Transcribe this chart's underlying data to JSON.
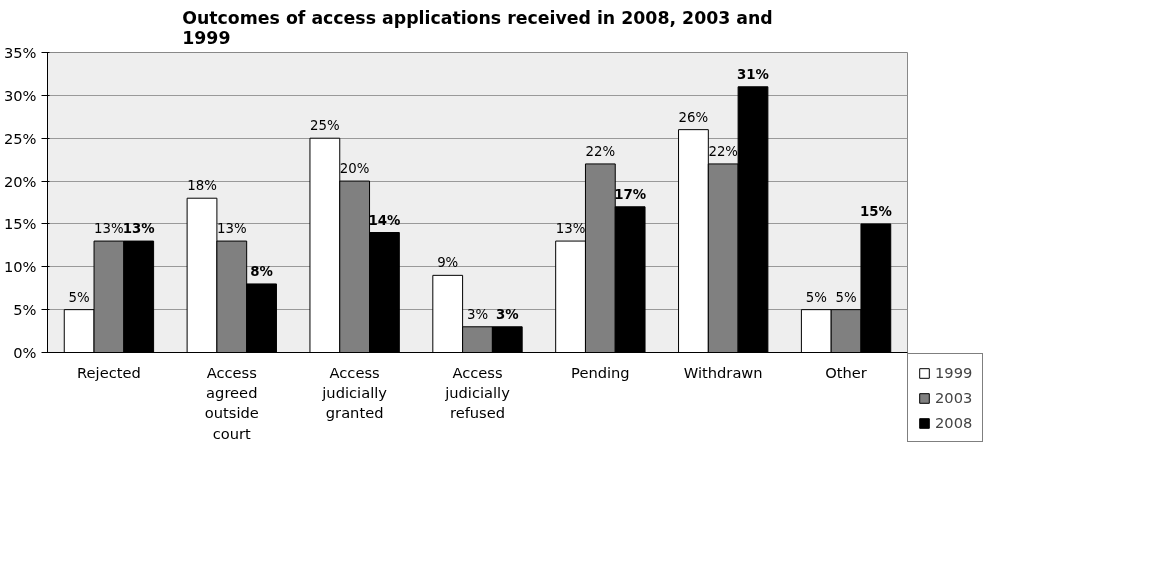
{
  "chart_data": {
    "type": "bar",
    "title": "Outcomes of access applications received in 2008, 2003 and 1999",
    "categories": [
      "Rejected",
      "Access agreed outside court",
      "Access judicially granted",
      "Access judicially refused",
      "Pending",
      "Withdrawn",
      "Other"
    ],
    "series": [
      {
        "name": "1999",
        "color": "#ffffff",
        "values": [
          5,
          18,
          25,
          9,
          13,
          26,
          5
        ],
        "value_labels": [
          "5%",
          "18%",
          "25%",
          "9%",
          "13%",
          "26%",
          "5%"
        ]
      },
      {
        "name": "2003",
        "color": "#808080",
        "values": [
          13,
          13,
          20,
          3,
          22,
          22,
          5
        ],
        "value_labels": [
          "13%",
          "13%",
          "20%",
          "3%",
          "22%",
          "22%",
          "5%"
        ]
      },
      {
        "name": "2008",
        "color": "#000000",
        "values": [
          13,
          8,
          14,
          3,
          17,
          31,
          15
        ],
        "value_labels": [
          "13%",
          "8%",
          "14%",
          "3%",
          "17%",
          "31%",
          "15%"
        ]
      }
    ],
    "ylim": [
      0,
      35
    ],
    "yticks": [
      {
        "value": 0,
        "label": "0%"
      },
      {
        "value": 5,
        "label": "5%"
      },
      {
        "value": 10,
        "label": "10%"
      },
      {
        "value": 15,
        "label": "15%"
      },
      {
        "value": 20,
        "label": "20%"
      },
      {
        "value": 25,
        "label": "25%"
      },
      {
        "value": 30,
        "label": "30%"
      },
      {
        "value": 35,
        "label": "35%"
      }
    ],
    "grid": "y",
    "legend": "right"
  }
}
